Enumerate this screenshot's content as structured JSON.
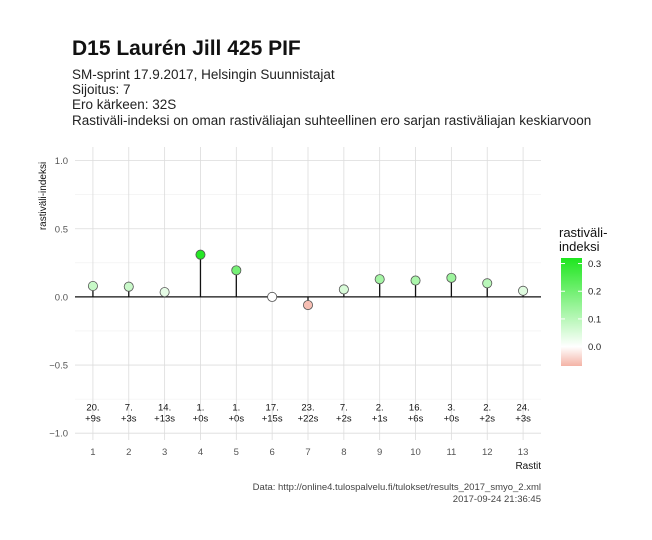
{
  "title": "D15 Laurén Jill 425 PIF",
  "subtitle_lines": [
    "SM-sprint 17.9.2017, Helsingin Suunnistajat",
    "Sijoitus: 7",
    "Ero kärkeen: 32S",
    "Rastiväli-indeksi on oman rastiväliajan suhteellinen ero sarjan rastiväliajan keskiarvoon"
  ],
  "caption_lines": [
    "Data: http://online4.tulospalvelu.fi/tulokset/results_2017_smyo_2.xml",
    "2017-09-24 21:36:45"
  ],
  "chart_data": {
    "type": "lollipop",
    "xlabel": "Rastit",
    "ylabel": "rastiväli-indeksi",
    "xlim": [
      0.5,
      13.5
    ],
    "ylim": [
      -1.05,
      1.1
    ],
    "x_ticks": [
      1,
      2,
      3,
      4,
      5,
      6,
      7,
      8,
      9,
      10,
      11,
      12,
      13
    ],
    "y_ticks": [
      -1.0,
      -0.5,
      0.0,
      0.5,
      1.0
    ],
    "y_tick_labels": [
      "−1.0",
      "−0.5",
      "0.0",
      "0.5",
      "1.0"
    ],
    "grid": true,
    "x": [
      1,
      2,
      3,
      4,
      5,
      6,
      7,
      8,
      9,
      10,
      11,
      12,
      13
    ],
    "values": [
      0.08,
      0.075,
      0.035,
      0.31,
      0.195,
      0.0,
      -0.06,
      0.055,
      0.13,
      0.12,
      0.14,
      0.1,
      0.045
    ],
    "annotations": [
      [
        "20.",
        "+9s"
      ],
      [
        "7.",
        "+3s"
      ],
      [
        "14.",
        "+13s"
      ],
      [
        "1.",
        "+0s"
      ],
      [
        "1.",
        "+0s"
      ],
      [
        "17.",
        "+15s"
      ],
      [
        "23.",
        "+22s"
      ],
      [
        "7.",
        "+2s"
      ],
      [
        "2.",
        "+1s"
      ],
      [
        "16.",
        "+6s"
      ],
      [
        "3.",
        "+0s"
      ],
      [
        "2.",
        "+2s"
      ],
      [
        "24.",
        "+3s"
      ]
    ],
    "legend": {
      "title_lines": [
        "rastiväli-",
        "indeksi"
      ],
      "position": "right",
      "ticks": [
        0.3,
        0.2,
        0.1,
        0.0
      ],
      "tick_labels": [
        "0.3",
        "0.2",
        "0.1",
        "0.0"
      ],
      "range": [
        -0.07,
        0.32
      ]
    },
    "colors": {
      "positive": "#1ee61e",
      "neutral": "#ffffff",
      "negative": "#f4b3a6"
    }
  }
}
